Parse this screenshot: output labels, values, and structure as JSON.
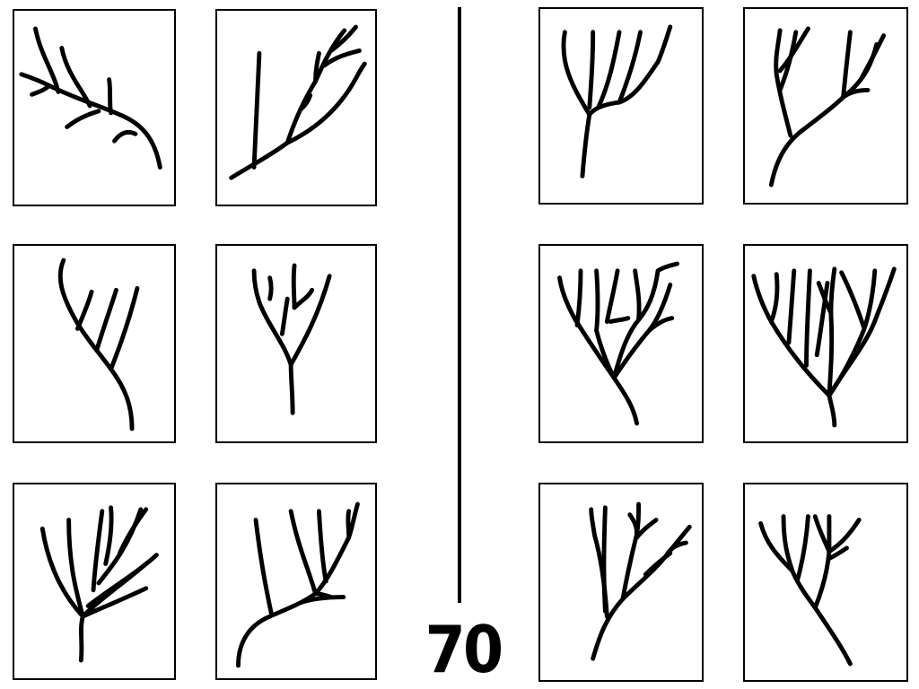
{
  "page": {
    "number": "70"
  },
  "colors": {
    "ink": "#000000",
    "paper": "#ffffff"
  },
  "panels": [
    {
      "id": "left-panel-1",
      "content": "branching-twig-drawing"
    },
    {
      "id": "left-panel-2",
      "content": "branching-twig-drawing"
    },
    {
      "id": "left-panel-3",
      "content": "branching-twig-drawing"
    },
    {
      "id": "left-panel-4",
      "content": "branching-twig-drawing"
    },
    {
      "id": "left-panel-5",
      "content": "branching-twig-drawing"
    },
    {
      "id": "left-panel-6",
      "content": "branching-twig-drawing"
    },
    {
      "id": "right-panel-1",
      "content": "branching-twig-drawing"
    },
    {
      "id": "right-panel-2",
      "content": "branching-twig-drawing"
    },
    {
      "id": "right-panel-3",
      "content": "branching-twig-drawing"
    },
    {
      "id": "right-panel-4",
      "content": "branching-twig-drawing"
    },
    {
      "id": "right-panel-5",
      "content": "branching-twig-drawing"
    },
    {
      "id": "right-panel-6",
      "content": "branching-twig-drawing"
    }
  ]
}
